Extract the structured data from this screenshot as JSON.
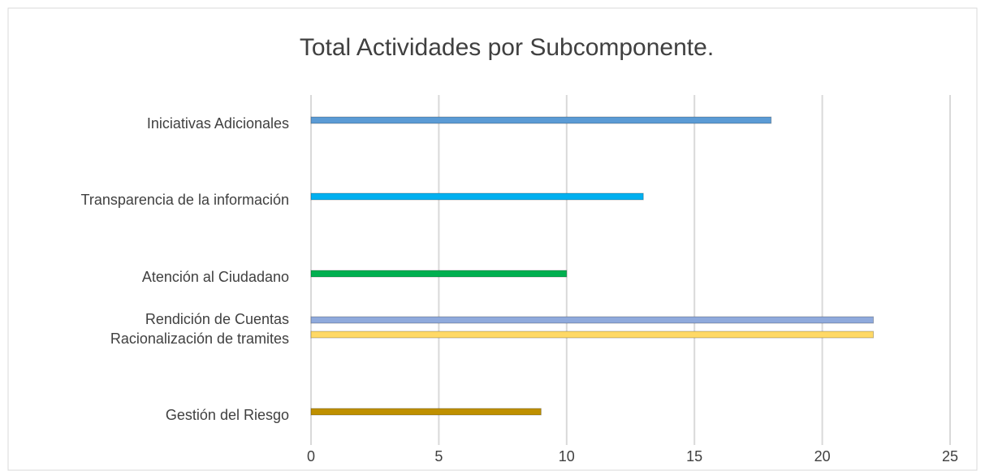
{
  "chart_data": {
    "type": "bar",
    "orientation": "horizontal",
    "title": "Total Actividades por Subcomponente.",
    "categories": [
      "Iniciativas Adicionales",
      "Transparencia de la información",
      "Atención al Ciudadano",
      "Rendición de Cuentas",
      "Racionalización de tramites",
      "Gestión del Riesgo"
    ],
    "values": [
      18,
      13,
      10,
      22,
      22,
      9
    ],
    "colors": [
      "#5b9bd5",
      "#00b0f0",
      "#00b050",
      "#8faadc",
      "#ffd966",
      "#bf9000"
    ],
    "xlim": [
      0,
      25
    ],
    "xticks": [
      0,
      5,
      10,
      15,
      20,
      25
    ],
    "grid": true
  }
}
